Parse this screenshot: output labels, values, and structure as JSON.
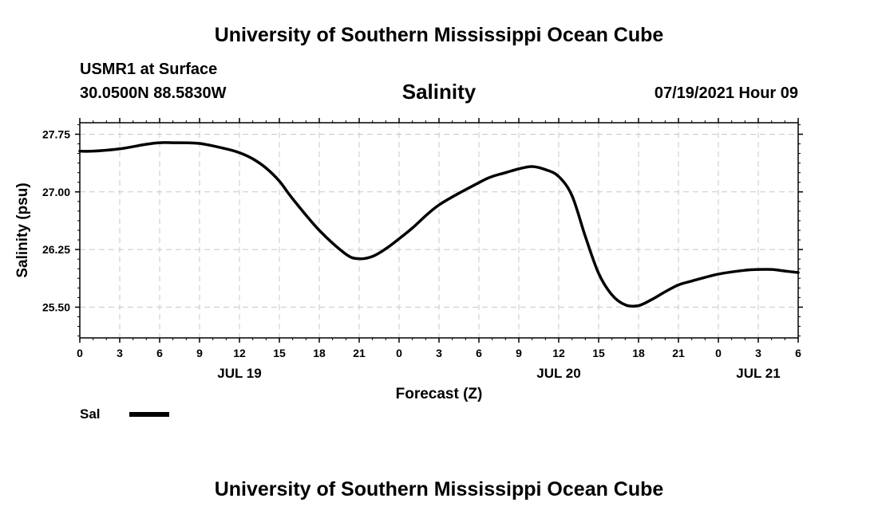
{
  "header": {
    "top_title": "University of Southern Mississippi Ocean Cube",
    "station": "USMR1 at Surface",
    "coordinates": "30.0500N  88.5830W",
    "datetime": "07/19/2021 Hour 09"
  },
  "footer": {
    "bottom_title": "University of Southern Mississippi Ocean Cube"
  },
  "chart_data": {
    "type": "line",
    "title": "Salinity",
    "xlabel": "Forecast (Z)",
    "ylabel": "Salinity (psu)",
    "ylim": [
      25.1,
      27.9
    ],
    "xlim": [
      0,
      54
    ],
    "y_ticks": [
      25.5,
      26.25,
      27.0,
      27.75
    ],
    "y_tick_labels": [
      "25.50",
      "26.25",
      "27.00",
      "27.75"
    ],
    "x_ticks": [
      0,
      3,
      6,
      9,
      12,
      15,
      18,
      21,
      24,
      27,
      30,
      33,
      36,
      39,
      42,
      45,
      48,
      51,
      54
    ],
    "x_tick_labels": [
      "0",
      "3",
      "6",
      "9",
      "12",
      "15",
      "18",
      "21",
      "0",
      "3",
      "6",
      "9",
      "12",
      "15",
      "18",
      "21",
      "0",
      "3",
      "6"
    ],
    "date_labels": [
      {
        "x": 12,
        "label": "JUL 19"
      },
      {
        "x": 36,
        "label": "JUL 20"
      },
      {
        "x": 51,
        "label": "JUL 21"
      }
    ],
    "grid": true,
    "legend_position": "bottom-left",
    "series": [
      {
        "name": "Sal",
        "color": "#000000",
        "x": [
          0,
          1,
          3,
          5,
          6,
          7,
          9,
          11,
          12,
          13,
          14,
          15,
          16,
          18,
          20,
          21,
          22,
          23,
          24,
          25,
          27,
          30,
          31,
          32,
          33,
          34,
          35,
          36,
          37,
          38,
          39,
          40,
          41,
          42,
          43,
          44,
          45,
          46,
          48,
          50,
          51,
          52,
          53,
          54
        ],
        "values": [
          27.53,
          27.53,
          27.56,
          27.62,
          27.64,
          27.64,
          27.63,
          27.56,
          27.51,
          27.43,
          27.31,
          27.14,
          26.91,
          26.5,
          26.19,
          26.13,
          26.16,
          26.26,
          26.39,
          26.53,
          26.83,
          27.12,
          27.2,
          27.25,
          27.3,
          27.33,
          27.29,
          27.2,
          26.95,
          26.42,
          25.94,
          25.66,
          25.53,
          25.52,
          25.6,
          25.7,
          25.79,
          25.84,
          25.93,
          25.98,
          25.99,
          25.99,
          25.97,
          25.95
        ]
      }
    ]
  }
}
